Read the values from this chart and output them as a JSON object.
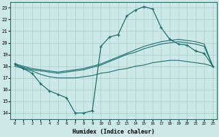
{
  "xlabel": "Humidex (Indice chaleur)",
  "bg_color": "#cce8e8",
  "grid_color": "#aacccc",
  "line_color": "#1a6b6b",
  "xlim": [
    -0.5,
    23.5
  ],
  "ylim": [
    13.5,
    23.5
  ],
  "xticks": [
    0,
    1,
    2,
    3,
    4,
    5,
    6,
    7,
    8,
    9,
    10,
    11,
    12,
    13,
    14,
    15,
    16,
    17,
    18,
    19,
    20,
    21,
    22,
    23
  ],
  "yticks": [
    14,
    15,
    16,
    17,
    18,
    19,
    20,
    21,
    22,
    23
  ],
  "line_upper_x": [
    0,
    1,
    2,
    3,
    4,
    5,
    6,
    7,
    8,
    9,
    10,
    11,
    12,
    13,
    14,
    15,
    16,
    17,
    18,
    19,
    20,
    21,
    22,
    23
  ],
  "line_upper_y": [
    18.2,
    18.0,
    17.8,
    17.7,
    17.6,
    17.5,
    17.6,
    17.7,
    17.8,
    18.0,
    18.2,
    18.5,
    18.8,
    19.1,
    19.4,
    19.7,
    19.9,
    20.1,
    20.2,
    20.3,
    20.2,
    20.1,
    19.9,
    18.0
  ],
  "line_mid_x": [
    0,
    1,
    2,
    3,
    4,
    5,
    6,
    7,
    8,
    9,
    10,
    11,
    12,
    13,
    14,
    15,
    16,
    17,
    18,
    19,
    20,
    21,
    22,
    23
  ],
  "line_mid_y": [
    18.1,
    17.9,
    17.7,
    17.6,
    17.5,
    17.4,
    17.5,
    17.6,
    17.7,
    17.9,
    18.1,
    18.4,
    18.7,
    19.0,
    19.2,
    19.5,
    19.7,
    19.9,
    20.0,
    20.1,
    20.0,
    19.9,
    19.7,
    18.0
  ],
  "line_lower_x": [
    0,
    1,
    2,
    3,
    4,
    5,
    6,
    7,
    8,
    9,
    10,
    11,
    12,
    13,
    14,
    15,
    16,
    17,
    18,
    19,
    20,
    21,
    22,
    23
  ],
  "line_lower_y": [
    18.0,
    17.8,
    17.6,
    17.3,
    17.1,
    17.0,
    17.0,
    17.0,
    17.1,
    17.2,
    17.4,
    17.5,
    17.7,
    17.8,
    18.0,
    18.1,
    18.3,
    18.4,
    18.5,
    18.5,
    18.4,
    18.3,
    18.2,
    18.0
  ],
  "curve_x": [
    0,
    1,
    2,
    3,
    4,
    5,
    6,
    7,
    8,
    9,
    10,
    11,
    12,
    13,
    14,
    15,
    16,
    17,
    18,
    19,
    20,
    21,
    22,
    23
  ],
  "curve_y": [
    18.2,
    17.8,
    17.4,
    16.5,
    15.9,
    15.6,
    15.3,
    14.0,
    14.0,
    14.2,
    19.7,
    20.5,
    20.7,
    22.3,
    22.8,
    23.1,
    22.9,
    21.3,
    20.3,
    19.9,
    19.8,
    19.3,
    19.1,
    18.0
  ]
}
